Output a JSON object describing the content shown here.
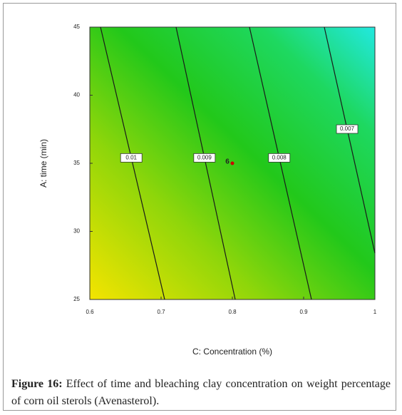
{
  "chart_data": {
    "type": "contour",
    "xlabel": "C: Concentration (%)",
    "ylabel": "A: time (min)",
    "xlim": [
      0.6,
      1
    ],
    "xticks": [
      0.6,
      0.7,
      0.8,
      0.9,
      1
    ],
    "ylim": [
      25,
      45
    ],
    "yticks": [
      25,
      30,
      35,
      40,
      45
    ],
    "color": "#1a1a1a",
    "contours": [
      {
        "level": 0.01,
        "x": [
          0.615,
          0.705
        ],
        "y": [
          45,
          25
        ]
      },
      {
        "level": 0.009,
        "x": [
          0.721,
          0.804
        ],
        "y": [
          45,
          25
        ]
      },
      {
        "level": 0.008,
        "x": [
          0.824,
          0.911
        ],
        "y": [
          45,
          25
        ]
      },
      {
        "level": 0.007,
        "x": [
          0.929,
          1
        ],
        "y": [
          45,
          28.4
        ]
      }
    ],
    "points": [
      {
        "label": "6",
        "x": 0.795,
        "y": 35
      }
    ]
  },
  "caption": {
    "label": "Figure 16:",
    "text": "Effect of time and bleaching clay concentration on weight percentage of corn oil sterols (Avenasterol)."
  }
}
